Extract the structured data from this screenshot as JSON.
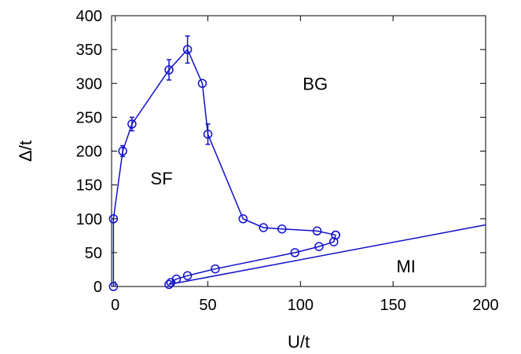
{
  "chart_data": {
    "type": "line",
    "xlabel": "U/t",
    "ylabel": "Δ/t",
    "xlim": [
      -2,
      200
    ],
    "ylim": [
      0,
      400
    ],
    "x_ticks": [
      0,
      50,
      100,
      150,
      200
    ],
    "y_ticks": [
      0,
      50,
      100,
      150,
      200,
      250,
      300,
      350,
      400
    ],
    "grid": false,
    "color": "#1010cc",
    "region_labels": [
      {
        "text": "BG",
        "x": 108,
        "y": 300
      },
      {
        "text": "SF",
        "x": 25,
        "y": 160
      },
      {
        "text": "MI",
        "x": 157,
        "y": 30
      }
    ],
    "series": [
      {
        "points": [
          {
            "x": -1,
            "y": 0
          },
          {
            "x": -1,
            "y": 100
          },
          {
            "x": 4,
            "y": 200,
            "err": 8
          },
          {
            "x": 9,
            "y": 240,
            "err": 10
          },
          {
            "x": 29,
            "y": 320,
            "err": 15
          },
          {
            "x": 39,
            "y": 350,
            "err": 20
          },
          {
            "x": 47,
            "y": 300
          },
          {
            "x": 50,
            "y": 225,
            "err": 15
          },
          {
            "x": 69,
            "y": 100
          },
          {
            "x": 80,
            "y": 87
          },
          {
            "x": 90,
            "y": 85
          },
          {
            "x": 109,
            "y": 82
          },
          {
            "x": 119,
            "y": 76
          }
        ]
      },
      {
        "points": [
          {
            "x": 119,
            "y": 76
          },
          {
            "x": 118,
            "y": 66
          },
          {
            "x": 110,
            "y": 59
          },
          {
            "x": 97,
            "y": 50
          },
          {
            "x": 54,
            "y": 26
          },
          {
            "x": 39,
            "y": 16
          },
          {
            "x": 33,
            "y": 11
          },
          {
            "x": 30,
            "y": 6
          },
          {
            "x": 29,
            "y": 3
          }
        ]
      },
      {
        "points": [
          {
            "x": 29,
            "y": 3
          },
          {
            "x": 200,
            "y": 91
          }
        ]
      }
    ]
  }
}
